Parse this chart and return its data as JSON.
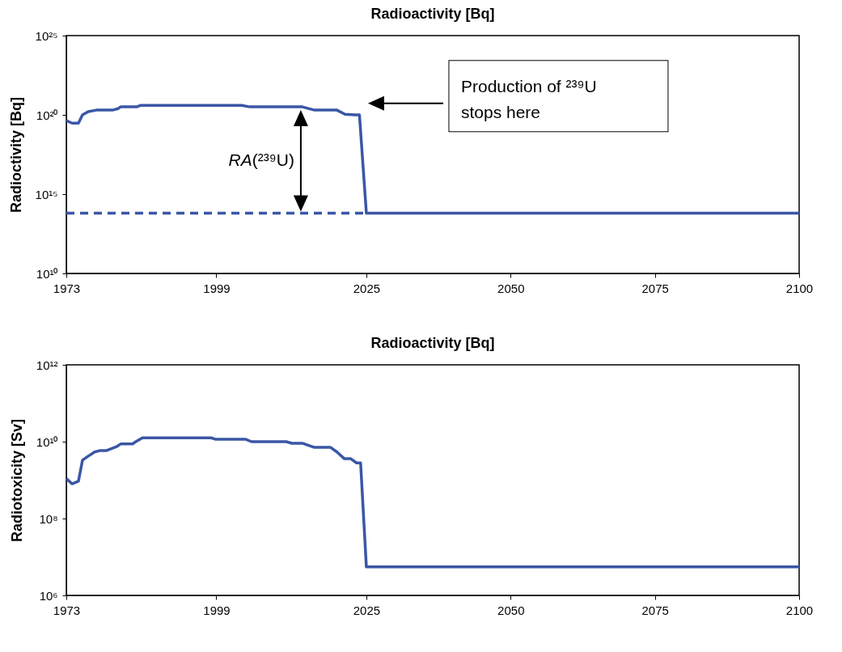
{
  "chart_data": [
    {
      "type": "line",
      "title": "Radioactivity [Bq]",
      "ylabel": "Radioctivity [Bq]",
      "log": true,
      "grid": false,
      "xlim": [
        1973,
        2100
      ],
      "xticks": [
        1973,
        1999,
        2025,
        2050,
        2075,
        2100
      ],
      "ylim": [
        10000000000.0,
        1e+25
      ],
      "yticks": [
        {
          "value": 10000000000.0,
          "label": "10¹⁰"
        },
        {
          "value": 1000000000000000.0,
          "label": "10¹⁵"
        },
        {
          "value": 1e+20,
          "label": "10²⁰"
        },
        {
          "value": 1e+25,
          "label": "10²⁵"
        }
      ],
      "series": [
        {
          "color": "#3a56a6",
          "x": [
            1973,
            1974,
            1975.1,
            1975.8,
            1976.8,
            1978.2,
            1981,
            1982,
            1982.4,
            1985.2,
            1985.9,
            2003.4,
            2004.8,
            2013.9,
            2016,
            2019.9,
            2021.3,
            2023,
            2023.8,
            2025,
            2100
          ],
          "values": [
            4.3e+19,
            3e+19,
            3e+19,
            1e+20,
            1.6e+20,
            2e+20,
            2e+20,
            2.5e+20,
            3.2e+20,
            3.2e+20,
            4e+20,
            4e+20,
            3.2e+20,
            3.2e+20,
            2e+20,
            2e+20,
            1.1e+20,
            1e+20,
            1e+20,
            63000000000000.0,
            63000000000000.0
          ]
        },
        {
          "color": "#3a56a6",
          "line_style": "dashed",
          "x": [
            1973,
            2025
          ],
          "values": [
            63000000000000.0,
            63000000000000.0
          ]
        }
      ],
      "annotations": [
        "RA(²³⁹U)",
        "Production of  ²³⁹U\nstops here"
      ]
    },
    {
      "type": "line",
      "title": "Radioactivity [Bq]",
      "ylabel": "Radiotoxicity [Sv]",
      "log": true,
      "grid": false,
      "xlim": [
        1973,
        2100
      ],
      "xticks": [
        1973,
        1999,
        2025,
        2050,
        2075,
        2100
      ],
      "ylim": [
        1000000.0,
        1000000000000.0
      ],
      "yticks": [
        {
          "value": 1000000.0,
          "label": "10⁶"
        },
        {
          "value": 100000000.0,
          "label": "10⁸"
        },
        {
          "value": 10000000000.0,
          "label": "10¹⁰"
        },
        {
          "value": 1000000000000.0,
          "label": "10¹²"
        }
      ],
      "series": [
        {
          "color": "#3a56a6",
          "x": [
            1973,
            1974,
            1975.1,
            1975.8,
            1976.8,
            1977.9,
            1978.9,
            1980,
            1981.7,
            1982.4,
            1984.5,
            1984.8,
            1986.2,
            1998.1,
            1998.9,
            2004.1,
            2005.1,
            2011.1,
            2012.1,
            2013.9,
            2016,
            2018.8,
            2019.9,
            2021.2,
            2022.3,
            2023.3,
            2024,
            2025,
            2100
          ],
          "values": [
            1100000000.0,
            800000000.0,
            930000000.0,
            3300000000.0,
            4200000000.0,
            5400000000.0,
            5900000000.0,
            5900000000.0,
            7400000000.0,
            8700000000.0,
            8700000000.0,
            9500000000.0,
            12600000000.0,
            12600000000.0,
            11500000000.0,
            11500000000.0,
            10000000000.0,
            10000000000.0,
            9100000000.0,
            9100000000.0,
            7100000000.0,
            7100000000.0,
            5400000000.0,
            3600000000.0,
            3600000000.0,
            2800000000.0,
            2800000000.0,
            5500000.0,
            5500000.0
          ]
        }
      ]
    }
  ]
}
